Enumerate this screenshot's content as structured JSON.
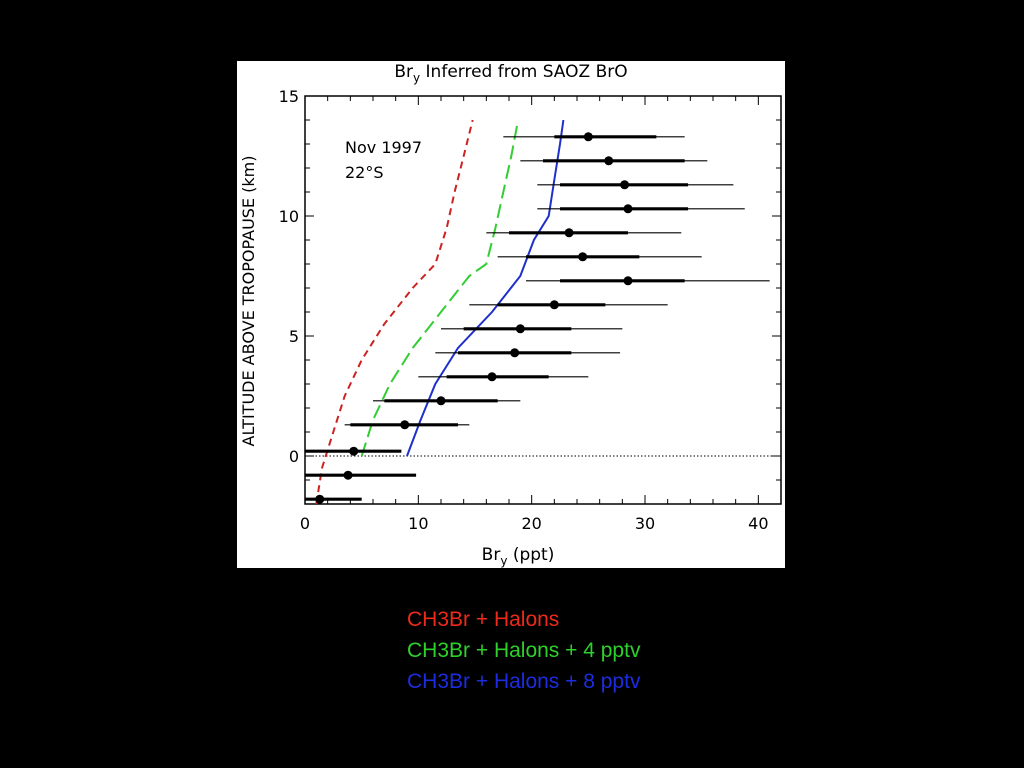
{
  "chart_data": {
    "type": "scatter",
    "title_main": "Br",
    "title_sub": "y",
    "title_rest": " Inferred from SAOZ BrO",
    "xlabel_main": "Br",
    "xlabel_sub": "y",
    "xlabel_rest": " (ppt)",
    "ylabel": "ALTITUDE ABOVE TROPOPAUSE (km)",
    "xlim": [
      0,
      42
    ],
    "ylim": [
      -2,
      15
    ],
    "x_ticks": [
      0,
      10,
      20,
      30,
      40
    ],
    "y_ticks": [
      0,
      5,
      10,
      15
    ],
    "annotation_line1": "Nov 1997",
    "annotation_line2": "22°S",
    "reference_line_y": 0,
    "observations": [
      {
        "alt": 13.3,
        "bry": 25.0,
        "thick": [
          22.0,
          31.0
        ],
        "thin": [
          17.5,
          33.5
        ]
      },
      {
        "alt": 12.3,
        "bry": 26.8,
        "thick": [
          21.0,
          33.5
        ],
        "thin": [
          19.0,
          35.5
        ]
      },
      {
        "alt": 11.3,
        "bry": 28.2,
        "thick": [
          22.5,
          33.8
        ],
        "thin": [
          20.5,
          37.8
        ]
      },
      {
        "alt": 10.3,
        "bry": 28.5,
        "thick": [
          22.5,
          33.8
        ],
        "thin": [
          20.5,
          38.8
        ]
      },
      {
        "alt": 9.3,
        "bry": 23.3,
        "thick": [
          18.0,
          28.5
        ],
        "thin": [
          16.0,
          33.2
        ]
      },
      {
        "alt": 8.3,
        "bry": 24.5,
        "thick": [
          19.5,
          29.5
        ],
        "thin": [
          17.0,
          35.0
        ]
      },
      {
        "alt": 7.3,
        "bry": 28.5,
        "thick": [
          22.5,
          33.5
        ],
        "thin": [
          19.5,
          41.0
        ]
      },
      {
        "alt": 6.3,
        "bry": 22.0,
        "thick": [
          17.0,
          26.5
        ],
        "thin": [
          14.5,
          32.0
        ]
      },
      {
        "alt": 5.3,
        "bry": 19.0,
        "thick": [
          14.0,
          23.5
        ],
        "thin": [
          12.0,
          28.0
        ]
      },
      {
        "alt": 4.3,
        "bry": 18.5,
        "thick": [
          13.5,
          23.5
        ],
        "thin": [
          11.5,
          27.8
        ]
      },
      {
        "alt": 3.3,
        "bry": 16.5,
        "thick": [
          12.5,
          21.5
        ],
        "thin": [
          10.0,
          25.0
        ]
      },
      {
        "alt": 2.3,
        "bry": 12.0,
        "thick": [
          7.0,
          17.0
        ],
        "thin": [
          6.0,
          19.0
        ]
      },
      {
        "alt": 1.3,
        "bry": 8.8,
        "thick": [
          4.0,
          13.5
        ],
        "thin": [
          3.5,
          14.5
        ]
      },
      {
        "alt": 0.2,
        "bry": 4.3,
        "thick": [
          0.0,
          8.5
        ],
        "thin": [
          0.0,
          8.5
        ]
      },
      {
        "alt": -0.8,
        "bry": 3.8,
        "thick": [
          0.0,
          9.8
        ],
        "thin": [
          0.0,
          9.8
        ]
      },
      {
        "alt": -1.8,
        "bry": 1.3,
        "thick": [
          0.0,
          5.0
        ],
        "thin": [
          0.0,
          5.0
        ]
      }
    ],
    "series": [
      {
        "name": "CH3Br + Halons",
        "color": "#cc2222",
        "dash": "short",
        "points": [
          [
            1.0,
            -2
          ],
          [
            1.5,
            -0.5
          ],
          [
            2.5,
            1
          ],
          [
            3.5,
            2.5
          ],
          [
            5.0,
            4
          ],
          [
            7.0,
            5.5
          ],
          [
            9.5,
            7
          ],
          [
            11.5,
            8
          ],
          [
            12.5,
            9.5
          ],
          [
            13.2,
            11
          ],
          [
            14.0,
            12.5
          ],
          [
            14.8,
            14
          ]
        ]
      },
      {
        "name": "CH3Br + Halons + 4 pptv",
        "color": "#33cc33",
        "dash": "long",
        "points": [
          [
            5.0,
            0
          ],
          [
            6.0,
            1.5
          ],
          [
            7.5,
            3
          ],
          [
            9.5,
            4.5
          ],
          [
            12.0,
            6
          ],
          [
            14.5,
            7.5
          ],
          [
            16.0,
            8
          ],
          [
            16.8,
            9.5
          ],
          [
            17.5,
            11
          ],
          [
            18.2,
            12.5
          ],
          [
            18.8,
            14
          ]
        ]
      },
      {
        "name": "CH3Br + Halons + 8 pptv",
        "color": "#1f2fcc",
        "dash": "solid",
        "points": [
          [
            9.0,
            0
          ],
          [
            10.2,
            1.5
          ],
          [
            11.5,
            3
          ],
          [
            13.5,
            4.5
          ],
          [
            16.5,
            6
          ],
          [
            19.0,
            7.5
          ],
          [
            20.2,
            9
          ],
          [
            21.5,
            10
          ],
          [
            22.0,
            11.5
          ],
          [
            22.5,
            13
          ],
          [
            22.8,
            14
          ]
        ]
      }
    ]
  },
  "legend": {
    "items": [
      {
        "label": "CH3Br + Halons",
        "color": "#ee2a1a"
      },
      {
        "label": "CH3Br + Halons + 4 pptv",
        "color": "#2ed12a"
      },
      {
        "label": "CH3Br + Halons + 8 pptv",
        "color": "#1d2ce0"
      }
    ]
  }
}
